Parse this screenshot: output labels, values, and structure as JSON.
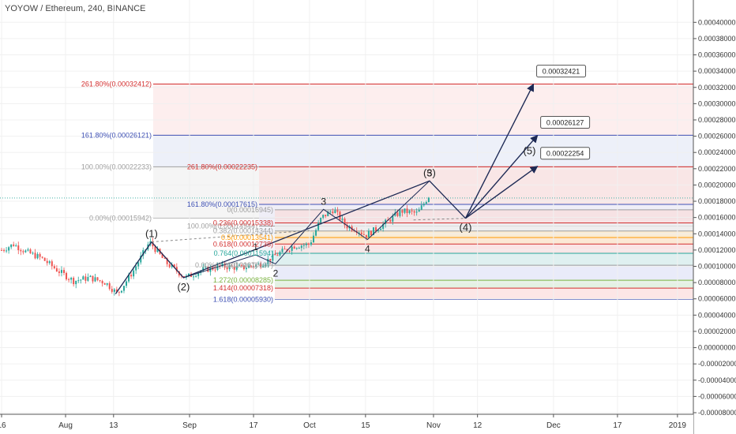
{
  "header": {
    "title": "YOYOW / Ethereum, 240, BINANCE"
  },
  "colors": {
    "up": "#26a69a",
    "down": "#ef5350",
    "wave": "#1e2a55",
    "red": "#d32f2f",
    "blue": "#3f51b5",
    "grey": "#9e9e9e",
    "green": "#7cb342",
    "orange": "#ff9800",
    "teal": "#26a69a"
  },
  "chart_data": {
    "type": "candlestick",
    "title": "YOYOW / Ethereum, 240, BINANCE",
    "ylim": [
      -8e-05,
      0.00041
    ],
    "y_ticks": [
      "0.00040000",
      "0.00038000",
      "0.00036000",
      "0.00034000",
      "0.00032000",
      "0.00030000",
      "0.00028000",
      "0.00026000",
      "0.00024000",
      "0.00022000",
      "0.00020000",
      "0.00018000",
      "0.00016000",
      "0.00014000",
      "0.00012000",
      "0.00010000",
      "0.00008000",
      "0.00006000",
      "0.00004000",
      "0.00002000",
      "0.00000000",
      "-0.00002000",
      "-0.00004000",
      "-0.00006000",
      "-0.00008000"
    ],
    "x_ticks": [
      {
        "day": 0,
        "label": "16"
      },
      {
        "day": 16,
        "label": "Aug"
      },
      {
        "day": 28,
        "label": "13"
      },
      {
        "day": 47,
        "label": "Sep"
      },
      {
        "day": 63,
        "label": "17"
      },
      {
        "day": 77,
        "label": "Oct"
      },
      {
        "day": 91,
        "label": "15"
      },
      {
        "day": 108,
        "label": "Nov"
      },
      {
        "day": 119,
        "label": "12"
      },
      {
        "day": 138,
        "label": "Dec"
      },
      {
        "day": 154,
        "label": "17"
      },
      {
        "day": 169,
        "label": "2019"
      }
    ],
    "xlim_days": [
      0,
      171
    ],
    "last_price": 0.000184,
    "price_path": [
      [
        0,
        0.00012
      ],
      [
        3,
        0.000127
      ],
      [
        6,
        0.000118
      ],
      [
        10,
        0.00011
      ],
      [
        14,
        9.5e-05
      ],
      [
        18,
        8.2e-05
      ],
      [
        22,
        8.6e-05
      ],
      [
        26,
        8e-05
      ],
      [
        29,
        6.6e-05
      ],
      [
        33,
        9.5e-05
      ],
      [
        37,
        0.00013
      ],
      [
        41,
        0.000105
      ],
      [
        46,
        8.6e-05
      ],
      [
        50,
        9.5e-05
      ],
      [
        55,
        0.0001
      ],
      [
        60,
        9.8e-05
      ],
      [
        65,
        0.000103
      ],
      [
        69,
        0.000115
      ],
      [
        73,
        0.000125
      ],
      [
        77,
        0.000127
      ],
      [
        80,
        0.00016
      ],
      [
        83,
        0.00017
      ],
      [
        86,
        0.00015
      ],
      [
        89,
        0.000145
      ],
      [
        91,
        0.000138
      ],
      [
        95,
        0.00015
      ],
      [
        100,
        0.000168
      ],
      [
        104,
        0.000165
      ],
      [
        107,
        0.000188
      ]
    ],
    "wave_main": [
      {
        "day": 28.5,
        "price": 6.6e-05
      },
      {
        "day": 37.5,
        "price": 0.00013,
        "label": "(1)"
      },
      {
        "day": 45.5,
        "price": 8.6e-05,
        "label": "(2)"
      },
      {
        "day": 107,
        "price": 0.000205,
        "label": "(3)"
      },
      {
        "day": 116,
        "price": 0.000159,
        "label": "(4)"
      }
    ],
    "wave_minor": [
      {
        "day": 45.5,
        "price": 8.6e-05
      },
      {
        "day": 63.5,
        "price": 0.000114,
        "label": "1"
      },
      {
        "day": 68.5,
        "price": 0.000103,
        "label": "2"
      },
      {
        "day": 80.5,
        "price": 0.00017,
        "label": "3"
      },
      {
        "day": 91.5,
        "price": 0.000133,
        "label": "4"
      },
      {
        "day": 107,
        "price": 0.000205,
        "label": "5"
      }
    ],
    "projections": [
      {
        "from_day": 116,
        "from_price": 0.000159,
        "to_day": 133,
        "to_price": 0.000324,
        "label": "0.00032421"
      },
      {
        "from_day": 116,
        "from_price": 0.000159,
        "to_day": 134,
        "to_price": 0.000261,
        "label": "0.00026127"
      },
      {
        "from_day": 116,
        "from_price": 0.000159,
        "to_day": 134,
        "to_price": 0.000223,
        "label": "0.00022254"
      }
    ],
    "projection_wave_label": {
      "day": 132,
      "price": 0.000238,
      "label": "(5)"
    },
    "fib_extension_big": [
      {
        "level": "261.80%",
        "price": 0.00032412,
        "label": "261.80%(0.00032412)",
        "color": "red"
      },
      {
        "level": "161.80%",
        "price": 0.00026121,
        "label": "161.80%(0.00026121)",
        "color": "blue"
      },
      {
        "level": "100.00%",
        "price": 0.00022233,
        "label": "100.00%(0.00022233)",
        "color": "grey"
      },
      {
        "level": "0.00%",
        "price": 0.00015942,
        "label": "0.00%(0.00015942)",
        "color": "grey"
      }
    ],
    "fib_extension_small": [
      {
        "price": 0.00022235,
        "label": "261.80%(0.00022235)",
        "color": "red"
      },
      {
        "price": 0.00017615,
        "label": "161.80%(0.00017615)",
        "color": "blue"
      },
      {
        "price": 0.00014944,
        "label": "100.00%(0.00014944)",
        "color": "grey"
      },
      {
        "price": 0.00010137,
        "label": "0.00%(0.00010137)",
        "color": "grey"
      }
    ],
    "fib_retracement": [
      {
        "price": 0.00016945,
        "label": "0(0.00016945)",
        "color": "grey"
      },
      {
        "price": 0.00015338,
        "label": "0.236(0.00015338)",
        "color": "red"
      },
      {
        "price": 0.00014344,
        "label": "0.382(0.00014344)",
        "color": "grey"
      },
      {
        "price": 0.00013541,
        "label": "0.5(0.00013541)",
        "color": "orange"
      },
      {
        "price": 0.00012738,
        "label": "0.618(0.00012738)",
        "color": "red"
      },
      {
        "price": 0.00011594,
        "label": "0.764(0.00011594)",
        "color": "teal"
      },
      {
        "price": 0.00010137,
        "label": "1(0.00010137)",
        "color": "grey"
      },
      {
        "price": 8.285e-05,
        "label": "1.272(0.00008285)",
        "color": "green"
      },
      {
        "price": 7.318e-05,
        "label": "1.414(0.00007318)",
        "color": "red"
      },
      {
        "price": 5.93e-05,
        "label": "1.618(0.00005930)",
        "color": "blue"
      }
    ]
  }
}
